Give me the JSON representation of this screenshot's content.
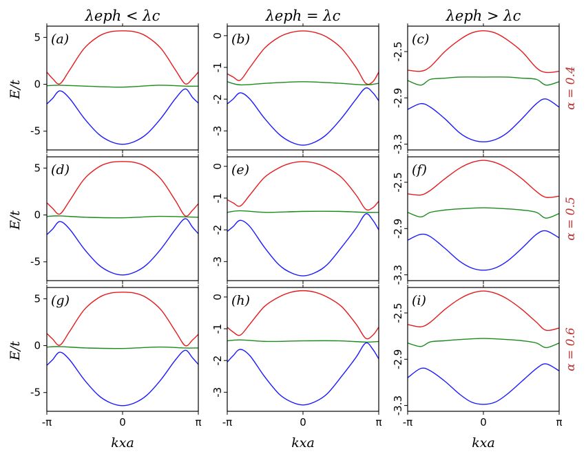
{
  "figure": {
    "column_titles": [
      "λeph < λc",
      "λeph = λc",
      "λeph > λc"
    ],
    "row_labels": [
      "α = 0.4",
      "α = 0.5",
      "α = 0.6"
    ],
    "ylabel": "E/t",
    "xlabel": "kxa",
    "colors": {
      "upper": "#e41a1c",
      "middle": "#1a8a1a",
      "lower": "#1a1aff",
      "row_label": "#c03030"
    }
  },
  "chart_data": [
    {
      "type": "line",
      "panel": "(a)",
      "xlim": [
        -3.1416,
        3.1416
      ],
      "ylim": [
        -7,
        6.2
      ],
      "yticks": [
        5,
        0,
        -5
      ],
      "ytick_labels": [
        "5",
        "0",
        "-5"
      ],
      "xticks": [
        -3.1416,
        0,
        3.1416
      ],
      "xtick_labels": [
        "-π",
        "0",
        "π"
      ],
      "series": [
        {
          "color": "#e41a1c",
          "x": [
            -3.14,
            -2.9,
            -2.6,
            -2.2,
            -1.6,
            -1.0,
            -0.5,
            0,
            0.5,
            1.0,
            1.6,
            2.2,
            2.6,
            2.9,
            3.14
          ],
          "y": [
            1.3,
            0.6,
            0.05,
            1.5,
            3.8,
            5.1,
            5.6,
            5.7,
            5.6,
            5.1,
            3.8,
            1.5,
            0.05,
            0.6,
            1.3
          ]
        },
        {
          "color": "#1a8a1a",
          "x": [
            -3.14,
            -2.6,
            -1.5,
            0,
            1.5,
            2.6,
            3.14
          ],
          "y": [
            -0.15,
            -0.1,
            -0.2,
            -0.3,
            -0.1,
            -0.2,
            -0.2
          ]
        },
        {
          "color": "#1a1aff",
          "x": [
            -3.14,
            -2.9,
            -2.6,
            -2.2,
            -1.6,
            -1.0,
            -0.5,
            0,
            0.5,
            1.0,
            1.6,
            2.2,
            2.6,
            2.9,
            3.14
          ],
          "y": [
            -2.1,
            -1.5,
            -0.7,
            -1.5,
            -3.6,
            -5.3,
            -6.1,
            -6.4,
            -6.1,
            -5.3,
            -3.6,
            -1.5,
            -0.5,
            -1.4,
            -2.0
          ]
        }
      ]
    },
    {
      "type": "line",
      "panel": "(b)",
      "xlim": [
        -3.1416,
        3.1416
      ],
      "ylim": [
        -3.6,
        0.3
      ],
      "yticks": [
        0,
        -1,
        -2,
        -3
      ],
      "ytick_labels": [
        "0",
        "-1",
        "-2",
        "-3"
      ],
      "xticks": [
        -3.1416,
        0,
        3.1416
      ],
      "xtick_labels": [
        "-π",
        "0",
        "π"
      ],
      "series": [
        {
          "color": "#e41a1c",
          "x": [
            -3.14,
            -2.9,
            -2.6,
            -2.2,
            -1.6,
            -1.0,
            -0.5,
            0,
            0.5,
            1.0,
            1.6,
            2.2,
            2.6,
            2.9,
            3.14
          ],
          "y": [
            -1.2,
            -1.3,
            -1.4,
            -1.0,
            -0.4,
            -0.05,
            0.1,
            0.15,
            0.1,
            -0.05,
            -0.4,
            -1.0,
            -1.5,
            -1.45,
            -1.15
          ]
        },
        {
          "color": "#1a8a1a",
          "x": [
            -3.14,
            -2.6,
            -1.5,
            0,
            1.5,
            2.6,
            3.14
          ],
          "y": [
            -1.45,
            -1.55,
            -1.5,
            -1.45,
            -1.5,
            -1.55,
            -1.5
          ]
        },
        {
          "color": "#1a1aff",
          "x": [
            -3.14,
            -2.9,
            -2.6,
            -2.2,
            -1.6,
            -1.0,
            -0.5,
            0,
            0.5,
            1.0,
            1.6,
            2.2,
            2.6,
            2.9,
            3.14
          ],
          "y": [
            -2.15,
            -2.0,
            -1.8,
            -2.0,
            -2.6,
            -3.1,
            -3.35,
            -3.45,
            -3.35,
            -3.1,
            -2.6,
            -2.0,
            -1.65,
            -1.8,
            -2.05
          ]
        }
      ]
    },
    {
      "type": "line",
      "panel": "(c)",
      "xlim": [
        -3.1416,
        3.1416
      ],
      "ylim": [
        -3.35,
        -2.28
      ],
      "yticks": [
        -2.5,
        -2.9,
        -3.3
      ],
      "ytick_labels": [
        "-2.5",
        "-2.9",
        "-3.3"
      ],
      "xticks": [
        -3.1416,
        0,
        3.1416
      ],
      "xtick_labels": [
        "-π",
        "0",
        "π"
      ],
      "series": [
        {
          "color": "#e41a1c",
          "x": [
            -3.14,
            -2.6,
            -2.2,
            -1.6,
            -1.0,
            -0.5,
            0,
            0.5,
            1.0,
            1.6,
            2.2,
            2.6,
            3.14
          ],
          "y": [
            -2.66,
            -2.67,
            -2.63,
            -2.5,
            -2.4,
            -2.34,
            -2.32,
            -2.34,
            -2.4,
            -2.5,
            -2.64,
            -2.68,
            -2.67
          ]
        },
        {
          "color": "#1a8a1a",
          "x": [
            -3.14,
            -2.6,
            -2.2,
            -1.6,
            -1.0,
            0,
            1.0,
            1.6,
            2.2,
            2.6,
            3.14
          ],
          "y": [
            -2.75,
            -2.79,
            -2.74,
            -2.73,
            -2.72,
            -2.72,
            -2.72,
            -2.73,
            -2.74,
            -2.79,
            -2.76
          ]
        },
        {
          "color": "#1a1aff",
          "x": [
            -3.14,
            -2.6,
            -2.2,
            -1.6,
            -1.0,
            -0.5,
            0,
            0.5,
            1.0,
            1.6,
            2.2,
            2.6,
            3.14
          ],
          "y": [
            -3.0,
            -2.95,
            -2.98,
            -3.08,
            -3.2,
            -3.26,
            -3.28,
            -3.26,
            -3.2,
            -3.08,
            -2.95,
            -2.91,
            -2.98
          ]
        }
      ]
    },
    {
      "type": "line",
      "panel": "(d)",
      "xlim": [
        -3.1416,
        3.1416
      ],
      "ylim": [
        -7,
        6.2
      ],
      "yticks": [
        5,
        0,
        -5
      ],
      "ytick_labels": [
        "5",
        "0",
        "-5"
      ],
      "xticks": [
        -3.1416,
        0,
        3.1416
      ],
      "xtick_labels": [
        "-π",
        "0",
        "π"
      ],
      "series": [
        {
          "color": "#e41a1c",
          "x": [
            -3.14,
            -2.9,
            -2.6,
            -2.2,
            -1.6,
            -1.0,
            -0.5,
            0,
            0.5,
            1.0,
            1.6,
            2.2,
            2.6,
            2.9,
            3.14
          ],
          "y": [
            1.3,
            0.7,
            0.1,
            1.5,
            3.8,
            5.1,
            5.6,
            5.7,
            5.6,
            5.1,
            3.8,
            1.5,
            -0.1,
            0.5,
            1.2
          ]
        },
        {
          "color": "#1a8a1a",
          "x": [
            -3.14,
            -2.6,
            -1.5,
            0,
            1.5,
            2.6,
            3.14
          ],
          "y": [
            -0.15,
            -0.1,
            -0.25,
            -0.3,
            -0.15,
            -0.2,
            -0.25
          ]
        },
        {
          "color": "#1a1aff",
          "x": [
            -3.14,
            -2.9,
            -2.6,
            -2.2,
            -1.6,
            -1.0,
            -0.5,
            0,
            0.5,
            1.0,
            1.6,
            2.2,
            2.6,
            2.9,
            3.14
          ],
          "y": [
            -2.1,
            -1.5,
            -0.7,
            -1.5,
            -3.6,
            -5.3,
            -6.1,
            -6.4,
            -6.1,
            -5.3,
            -3.6,
            -1.5,
            -0.4,
            -1.3,
            -2.0
          ]
        }
      ]
    },
    {
      "type": "line",
      "panel": "(e)",
      "xlim": [
        -3.1416,
        3.1416
      ],
      "ylim": [
        -3.6,
        0.3
      ],
      "yticks": [
        0,
        -1,
        -2,
        -3
      ],
      "ytick_labels": [
        "0",
        "-1",
        "-2",
        "-3"
      ],
      "xticks": [
        -3.1416,
        0,
        3.1416
      ],
      "xtick_labels": [
        "-π",
        "0",
        "π"
      ],
      "series": [
        {
          "color": "#e41a1c",
          "x": [
            -3.14,
            -2.9,
            -2.6,
            -2.2,
            -1.6,
            -1.0,
            -0.5,
            0,
            0.5,
            1.0,
            1.6,
            2.2,
            2.6,
            2.9,
            3.14
          ],
          "y": [
            -1.05,
            -1.15,
            -1.25,
            -0.9,
            -0.35,
            -0.05,
            0.1,
            0.15,
            0.1,
            -0.05,
            -0.35,
            -0.9,
            -1.35,
            -1.3,
            -1.1
          ]
        },
        {
          "color": "#1a8a1a",
          "x": [
            -3.14,
            -2.6,
            -1.5,
            0,
            1.5,
            2.6,
            3.14
          ],
          "y": [
            -1.45,
            -1.4,
            -1.45,
            -1.42,
            -1.42,
            -1.45,
            -1.45
          ]
        },
        {
          "color": "#1a1aff",
          "x": [
            -3.14,
            -2.9,
            -2.6,
            -2.2,
            -1.6,
            -1.0,
            -0.5,
            0,
            0.5,
            1.0,
            1.6,
            2.2,
            2.6,
            2.9,
            3.14
          ],
          "y": [
            -2.05,
            -1.9,
            -1.7,
            -1.9,
            -2.55,
            -3.1,
            -3.35,
            -3.45,
            -3.35,
            -3.1,
            -2.55,
            -1.95,
            -1.5,
            -1.7,
            -2.0
          ]
        }
      ]
    },
    {
      "type": "line",
      "panel": "(f)",
      "xlim": [
        -3.1416,
        3.1416
      ],
      "ylim": [
        -3.35,
        -2.28
      ],
      "yticks": [
        -2.5,
        -2.9,
        -3.3
      ],
      "ytick_labels": [
        "-2.5",
        "-2.9",
        "-3.3"
      ],
      "xticks": [
        -3.1416,
        0,
        3.1416
      ],
      "xtick_labels": [
        "-π",
        "0",
        "π"
      ],
      "series": [
        {
          "color": "#e41a1c",
          "x": [
            -3.14,
            -2.6,
            -2.2,
            -1.6,
            -1.0,
            -0.5,
            0,
            0.5,
            1.0,
            1.6,
            2.2,
            2.6,
            3.14
          ],
          "y": [
            -2.6,
            -2.61,
            -2.57,
            -2.47,
            -2.38,
            -2.33,
            -2.31,
            -2.33,
            -2.38,
            -2.47,
            -2.58,
            -2.63,
            -2.62
          ]
        },
        {
          "color": "#1a8a1a",
          "x": [
            -3.14,
            -2.6,
            -2.2,
            -1.6,
            -1.0,
            0,
            1.0,
            1.6,
            2.2,
            2.6,
            3.14
          ],
          "y": [
            -2.76,
            -2.8,
            -2.76,
            -2.74,
            -2.73,
            -2.72,
            -2.73,
            -2.74,
            -2.76,
            -2.81,
            -2.77
          ]
        },
        {
          "color": "#1a1aff",
          "x": [
            -3.14,
            -2.6,
            -2.2,
            -1.6,
            -1.0,
            -0.5,
            0,
            0.5,
            1.0,
            1.6,
            2.2,
            2.6,
            3.14
          ],
          "y": [
            -3.0,
            -2.95,
            -2.97,
            -3.07,
            -3.18,
            -3.24,
            -3.26,
            -3.24,
            -3.18,
            -3.07,
            -2.95,
            -2.92,
            -2.98
          ]
        }
      ]
    },
    {
      "type": "line",
      "panel": "(g)",
      "xlim": [
        -3.1416,
        3.1416
      ],
      "ylim": [
        -7,
        6.2
      ],
      "yticks": [
        5,
        0,
        -5
      ],
      "ytick_labels": [
        "5",
        "0",
        "-5"
      ],
      "xticks": [
        -3.1416,
        0,
        3.1416
      ],
      "xtick_labels": [
        "-π",
        "0",
        "π"
      ],
      "series": [
        {
          "color": "#e41a1c",
          "x": [
            -3.14,
            -2.9,
            -2.6,
            -2.2,
            -1.6,
            -1.0,
            -0.5,
            0,
            0.5,
            1.0,
            1.6,
            2.2,
            2.6,
            2.9,
            3.14
          ],
          "y": [
            1.3,
            0.7,
            0.05,
            1.5,
            3.8,
            5.1,
            5.6,
            5.7,
            5.6,
            5.1,
            3.8,
            1.5,
            0.0,
            0.6,
            1.2
          ]
        },
        {
          "color": "#1a8a1a",
          "x": [
            -3.14,
            -2.6,
            -1.5,
            0,
            1.5,
            2.6,
            3.14
          ],
          "y": [
            -0.15,
            -0.1,
            -0.25,
            -0.3,
            -0.15,
            -0.25,
            -0.25
          ]
        },
        {
          "color": "#1a1aff",
          "x": [
            -3.14,
            -2.9,
            -2.6,
            -2.2,
            -1.6,
            -1.0,
            -0.5,
            0,
            0.5,
            1.0,
            1.6,
            2.2,
            2.6,
            2.9,
            3.14
          ],
          "y": [
            -2.1,
            -1.5,
            -0.7,
            -1.5,
            -3.6,
            -5.3,
            -6.1,
            -6.4,
            -6.1,
            -5.3,
            -3.6,
            -1.5,
            -0.5,
            -1.3,
            -2.0
          ]
        }
      ]
    },
    {
      "type": "line",
      "panel": "(h)",
      "xlim": [
        -3.1416,
        3.1416
      ],
      "ylim": [
        -3.6,
        0.3
      ],
      "yticks": [
        0,
        -1,
        -2,
        -3
      ],
      "ytick_labels": [
        "0",
        "-1",
        "-2",
        "-3"
      ],
      "xticks": [
        -3.1416,
        0,
        3.1416
      ],
      "xtick_labels": [
        "-π",
        "0",
        "π"
      ],
      "series": [
        {
          "color": "#e41a1c",
          "x": [
            -3.14,
            -2.9,
            -2.6,
            -2.2,
            -1.6,
            -1.0,
            -0.5,
            0,
            0.5,
            1.0,
            1.6,
            2.2,
            2.6,
            2.9,
            3.14
          ],
          "y": [
            -0.95,
            -1.1,
            -1.2,
            -0.85,
            -0.3,
            0.0,
            0.15,
            0.2,
            0.15,
            0.0,
            -0.3,
            -0.85,
            -1.3,
            -1.2,
            -0.95
          ]
        },
        {
          "color": "#1a8a1a",
          "x": [
            -3.14,
            -2.6,
            -1.5,
            0,
            1.5,
            2.6,
            3.14
          ],
          "y": [
            -1.38,
            -1.35,
            -1.4,
            -1.38,
            -1.38,
            -1.42,
            -1.4
          ]
        },
        {
          "color": "#1a1aff",
          "x": [
            -3.14,
            -2.9,
            -2.6,
            -2.2,
            -1.6,
            -1.0,
            -0.5,
            0,
            0.5,
            1.0,
            1.6,
            2.2,
            2.6,
            2.9,
            3.14
          ],
          "y": [
            -2.05,
            -1.85,
            -1.65,
            -1.85,
            -2.5,
            -3.05,
            -3.3,
            -3.4,
            -3.3,
            -3.05,
            -2.5,
            -1.9,
            -1.45,
            -1.65,
            -1.95
          ]
        }
      ]
    },
    {
      "type": "line",
      "panel": "(i)",
      "xlim": [
        -3.1416,
        3.1416
      ],
      "ylim": [
        -3.35,
        -2.28
      ],
      "yticks": [
        -2.5,
        -2.9,
        -3.3
      ],
      "ytick_labels": [
        "-2.5",
        "-2.9",
        "-3.3"
      ],
      "xticks": [
        -3.1416,
        0,
        3.1416
      ],
      "xtick_labels": [
        "-π",
        "0",
        "π"
      ],
      "series": [
        {
          "color": "#e41a1c",
          "x": [
            -3.14,
            -2.6,
            -2.2,
            -1.6,
            -1.0,
            -0.5,
            0,
            0.5,
            1.0,
            1.6,
            2.2,
            2.6,
            3.14
          ],
          "y": [
            -2.6,
            -2.62,
            -2.58,
            -2.47,
            -2.38,
            -2.33,
            -2.31,
            -2.33,
            -2.38,
            -2.47,
            -2.58,
            -2.65,
            -2.63
          ]
        },
        {
          "color": "#1a8a1a",
          "x": [
            -3.14,
            -2.6,
            -2.2,
            -1.6,
            -1.0,
            0,
            1.0,
            1.6,
            2.2,
            2.6,
            3.14
          ],
          "y": [
            -2.76,
            -2.79,
            -2.75,
            -2.74,
            -2.73,
            -2.72,
            -2.73,
            -2.74,
            -2.76,
            -2.8,
            -2.76
          ]
        },
        {
          "color": "#1a1aff",
          "x": [
            -3.14,
            -2.6,
            -2.2,
            -1.6,
            -1.0,
            -0.5,
            0,
            0.5,
            1.0,
            1.6,
            2.2,
            2.6,
            3.14
          ],
          "y": [
            -3.06,
            -2.98,
            -3.0,
            -3.09,
            -3.2,
            -3.27,
            -3.29,
            -3.27,
            -3.2,
            -3.09,
            -2.98,
            -2.94,
            -3.0
          ]
        }
      ]
    }
  ]
}
